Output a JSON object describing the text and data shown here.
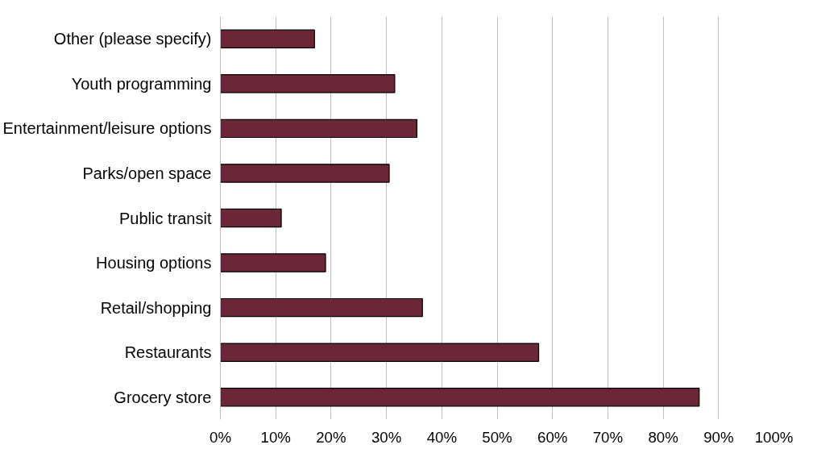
{
  "chart_data": {
    "type": "bar",
    "orientation": "horizontal",
    "categories": [
      "Other (please specify)",
      "Youth programming",
      "Entertainment/leisure options",
      "Parks/open space",
      "Public transit",
      "Housing options",
      "Retail/shopping",
      "Restaurants",
      "Grocery store"
    ],
    "values": [
      17,
      31.5,
      35.5,
      30.5,
      11,
      19,
      36.5,
      57.5,
      86.5
    ],
    "color": "#6b2737",
    "xlim": [
      0,
      100
    ],
    "xticks": [
      {
        "value": 0,
        "label": "0%"
      },
      {
        "value": 10,
        "label": "10%"
      },
      {
        "value": 20,
        "label": "20%"
      },
      {
        "value": 30,
        "label": "30%"
      },
      {
        "value": 40,
        "label": "40%"
      },
      {
        "value": 50,
        "label": "50%"
      },
      {
        "value": 60,
        "label": "60%"
      },
      {
        "value": 70,
        "label": "70%"
      },
      {
        "value": 80,
        "label": "80%"
      },
      {
        "value": 90,
        "label": "90%"
      },
      {
        "value": 100,
        "label": "100%"
      }
    ],
    "grid": "x"
  }
}
